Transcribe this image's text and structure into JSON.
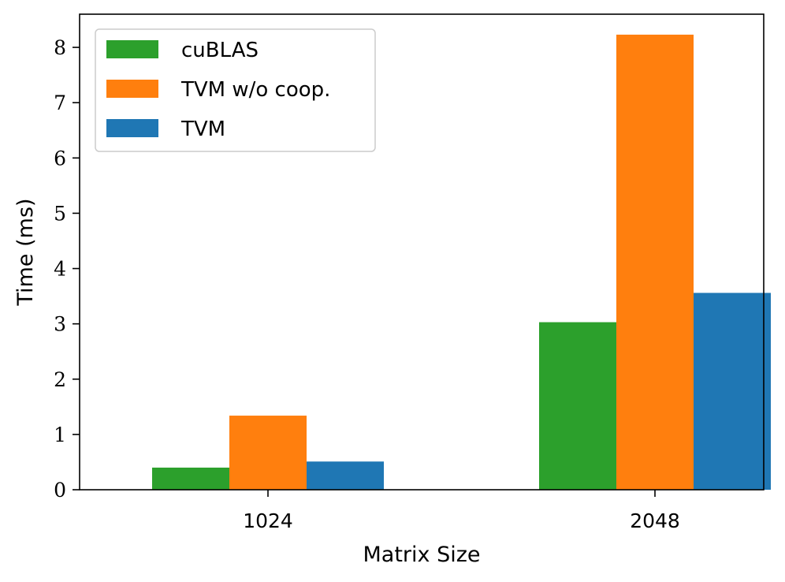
{
  "chart_data": {
    "type": "bar",
    "categories": [
      "1024",
      "2048"
    ],
    "series": [
      {
        "name": "cuBLAS",
        "values": [
          0.4,
          3.03
        ],
        "color": "#2ca02c"
      },
      {
        "name": "TVM w/o coop.",
        "values": [
          1.34,
          8.23
        ],
        "color": "#ff7f0e"
      },
      {
        "name": "TVM",
        "values": [
          0.51,
          3.56
        ],
        "color": "#1f77b4"
      }
    ],
    "title": "",
    "xlabel": "Matrix Size",
    "ylabel": "Time (ms)",
    "ylim": [
      0,
      8.6
    ],
    "yticks": [
      "0",
      "1",
      "2",
      "3",
      "4",
      "5",
      "6",
      "7",
      "8"
    ],
    "grid": false,
    "legend_position": "top-left"
  }
}
